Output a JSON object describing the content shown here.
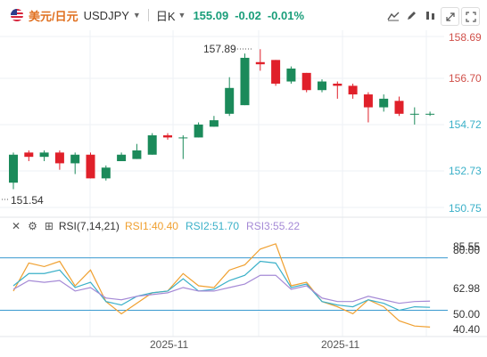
{
  "header": {
    "pair_name": "美元/日元",
    "symbol": "USDJPY",
    "timeframe": "日K",
    "price": "155.09",
    "change": "-0.02",
    "change_pct": "-0.01%",
    "tools": [
      "line-chart-icon",
      "pencil-icon",
      "settings-sliders-icon",
      "expand-icon",
      "fullscreen-icon"
    ]
  },
  "price_axis_labels": [
    "158.69",
    "156.70",
    "154.72",
    "152.73",
    "150.75"
  ],
  "annotations": {
    "high": "157.89",
    "low": "151.54"
  },
  "rsi_header": {
    "name": "RSI(7,14,21)",
    "rsi1": "RSI1:40.40",
    "rsi2": "RSI2:51.70",
    "rsi3": "RSI3:55.22"
  },
  "rsi_axis_labels": [
    "85.55",
    "80.00",
    "62.98",
    "50.00",
    "40.40"
  ],
  "x_labels": [
    "2025-11",
    "2025-11"
  ],
  "colors": {
    "up": "#1b8a5a",
    "down": "#e0202a",
    "rsi1": "#f0a030",
    "rsi2": "#3ab0c8",
    "rsi3": "#a58ad6",
    "axis_text_price": "#d0504a",
    "axis_text_rsi": "#333333"
  },
  "chart_data": [
    {
      "type": "candlestick",
      "title": "",
      "ylim": [
        150.75,
        158.69
      ],
      "series": [
        {
          "o": 151.9,
          "h": 153.3,
          "l": 151.6,
          "c": 153.2
        },
        {
          "o": 153.3,
          "h": 153.4,
          "l": 152.9,
          "c": 153.1
        },
        {
          "o": 153.1,
          "h": 153.4,
          "l": 152.9,
          "c": 153.3
        },
        {
          "o": 153.3,
          "h": 153.4,
          "l": 152.5,
          "c": 152.8
        },
        {
          "o": 152.8,
          "h": 153.3,
          "l": 152.3,
          "c": 153.2
        },
        {
          "o": 153.2,
          "h": 153.3,
          "l": 152.1,
          "c": 152.1
        },
        {
          "o": 152.1,
          "h": 152.7,
          "l": 152.0,
          "c": 152.6
        },
        {
          "o": 152.9,
          "h": 153.3,
          "l": 152.9,
          "c": 153.2
        },
        {
          "o": 153.0,
          "h": 153.7,
          "l": 153.0,
          "c": 153.4
        },
        {
          "o": 153.2,
          "h": 154.2,
          "l": 153.2,
          "c": 154.1
        },
        {
          "o": 154.1,
          "h": 154.2,
          "l": 153.9,
          "c": 154.0
        },
        {
          "o": 154.0,
          "h": 154.1,
          "l": 153.0,
          "c": 154.0
        },
        {
          "o": 154.0,
          "h": 154.7,
          "l": 154.0,
          "c": 154.6
        },
        {
          "o": 154.5,
          "h": 155.0,
          "l": 154.5,
          "c": 154.8
        },
        {
          "o": 155.1,
          "h": 156.8,
          "l": 155.0,
          "c": 156.3
        },
        {
          "o": 155.5,
          "h": 157.9,
          "l": 155.5,
          "c": 157.7
        },
        {
          "o": 157.5,
          "h": 158.1,
          "l": 157.1,
          "c": 157.4
        },
        {
          "o": 157.6,
          "h": 157.6,
          "l": 156.4,
          "c": 156.5
        },
        {
          "o": 156.6,
          "h": 157.3,
          "l": 156.5,
          "c": 157.2
        },
        {
          "o": 157.0,
          "h": 157.0,
          "l": 156.1,
          "c": 156.2
        },
        {
          "o": 156.2,
          "h": 156.7,
          "l": 156.1,
          "c": 156.6
        },
        {
          "o": 156.5,
          "h": 156.6,
          "l": 155.8,
          "c": 156.4
        },
        {
          "o": 156.4,
          "h": 156.5,
          "l": 155.8,
          "c": 156.0
        },
        {
          "o": 156.0,
          "h": 156.1,
          "l": 154.7,
          "c": 155.4
        },
        {
          "o": 155.4,
          "h": 156.0,
          "l": 155.2,
          "c": 155.8
        },
        {
          "o": 155.7,
          "h": 155.9,
          "l": 155.0,
          "c": 155.1
        },
        {
          "o": 155.1,
          "h": 155.4,
          "l": 154.6,
          "c": 155.1
        },
        {
          "o": 155.1,
          "h": 155.2,
          "l": 155.0,
          "c": 155.1
        }
      ]
    },
    {
      "type": "line",
      "title": "RSI(7,14,21)",
      "ylim": [
        35,
        92
      ],
      "reference_lines": [
        80.0,
        50.0
      ],
      "series": [
        {
          "name": "RSI1",
          "values": [
            61,
            77,
            75,
            78,
            64,
            73,
            55,
            48,
            54,
            60,
            61,
            71,
            64,
            63,
            73,
            76,
            85,
            88,
            64,
            66,
            55,
            52,
            48,
            56,
            52,
            44,
            41,
            40.4
          ]
        },
        {
          "name": "RSI2",
          "values": [
            64,
            71,
            71,
            73,
            63,
            66,
            55,
            53,
            58,
            60,
            61,
            68,
            61,
            62,
            67,
            70,
            78,
            77,
            63,
            65,
            55,
            53,
            52,
            56,
            54,
            50,
            52,
            51.7
          ]
        },
        {
          "name": "RSI3",
          "values": [
            62,
            67,
            66,
            67,
            61,
            63,
            57,
            56,
            58,
            59,
            60,
            63,
            61,
            61,
            63,
            65,
            70,
            70,
            62,
            64,
            57,
            55,
            55,
            58,
            56,
            54,
            55,
            55.22
          ]
        }
      ]
    }
  ]
}
